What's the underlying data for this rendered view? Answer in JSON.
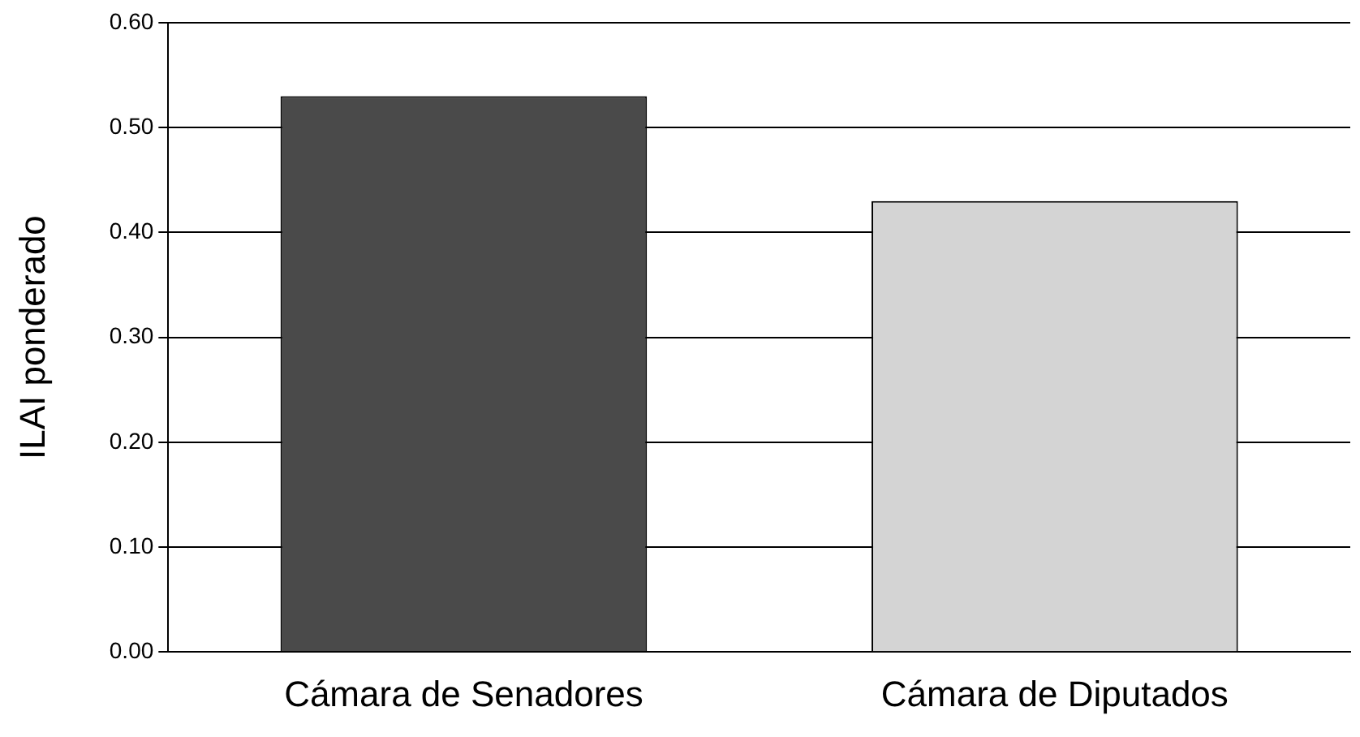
{
  "chart_data": {
    "type": "bar",
    "ylabel": "ILAI ponderado",
    "categories": [
      "Cámara de Senadores",
      "Cámara de Diputados"
    ],
    "values": [
      0.53,
      0.43
    ],
    "colors": [
      "#4a4a4a",
      "#d4d4d4"
    ],
    "ylim": [
      0,
      0.6
    ],
    "yticks": [
      {
        "value": 0,
        "label": "0.00"
      },
      {
        "value": 0.1,
        "label": "0.10"
      },
      {
        "value": 0.2,
        "label": "0.20"
      },
      {
        "value": 0.3,
        "label": "0.30"
      },
      {
        "value": 0.4,
        "label": "0.40"
      },
      {
        "value": 0.5,
        "label": "0.50"
      },
      {
        "value": 0.6,
        "label": "0.60"
      }
    ],
    "grid": "y",
    "legend": false
  }
}
